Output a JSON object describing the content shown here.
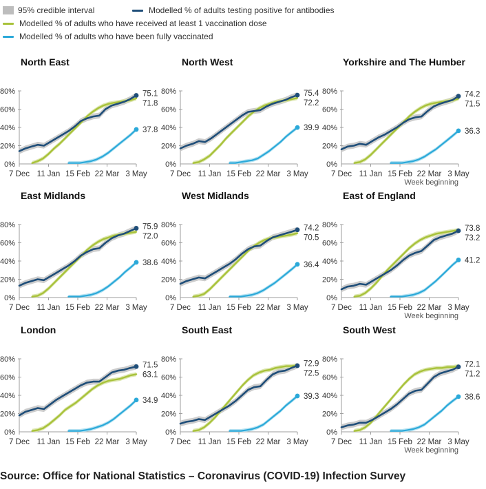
{
  "legend": {
    "ci_label": "95% credible interval",
    "antibody_label": "Modelled % of adults testing positive for antibodies",
    "dose1_label": "Modelled % of adults who have received at least 1 vaccination dose",
    "full_label": "Modelled % of adults who have been fully vaccinated"
  },
  "colors": {
    "antibody": "#1f4e79",
    "dose1": "#a8c23a",
    "full": "#2ba9d9",
    "ci": "#c4c4c4",
    "dose1_ci": "#d6e2a0",
    "full_ci": "#a9ddef",
    "axis": "#9e9e9e",
    "text": "#333333"
  },
  "source": "Source: Office for National Statistics – Coronavirus (COVID-19) Infection Survey",
  "chart_data": [
    {
      "type": "line",
      "title": "North East",
      "x_ticks": [
        "7 Dec",
        "11 Jan",
        "15 Feb",
        "22 Mar",
        "3 May"
      ],
      "y_ticks": [
        "0%",
        "20%",
        "40%",
        "60%",
        "80%"
      ],
      "ylim": [
        0,
        80
      ],
      "x_label": "",
      "end_labels": {
        "antibody": "75.1",
        "dose1": "71.8",
        "full": "37.8"
      },
      "series": {
        "antibody": [
          14,
          17,
          19,
          21,
          20,
          24,
          28,
          32,
          36,
          41,
          47,
          50,
          52,
          53,
          60,
          64,
          66,
          68,
          71,
          75.1
        ],
        "dose1": [
          1,
          3,
          6,
          11,
          17,
          22,
          28,
          34,
          40,
          46,
          52,
          57,
          61,
          64,
          66,
          67,
          68,
          69,
          70,
          71.8
        ],
        "full": [
          1,
          1,
          1,
          2,
          3,
          5,
          8,
          12,
          17,
          22,
          27,
          32,
          37.8
        ]
      }
    },
    {
      "type": "line",
      "title": "North West",
      "x_ticks": [
        "7 Dec",
        "11 Jan",
        "15 Feb",
        "22 Mar",
        "3 May"
      ],
      "y_ticks": [
        "0%",
        "20%",
        "40%",
        "60%",
        "80%"
      ],
      "ylim": [
        0,
        80
      ],
      "x_label": "",
      "end_labels": {
        "antibody": "75.4",
        "dose1": "72.2",
        "full": "39.9"
      },
      "series": {
        "antibody": [
          17,
          20,
          22,
          25,
          24,
          28,
          33,
          38,
          43,
          48,
          53,
          57,
          58,
          59,
          63,
          66,
          68,
          70,
          73,
          75.4
        ],
        "dose1": [
          1,
          2,
          5,
          9,
          15,
          21,
          28,
          34,
          40,
          46,
          52,
          57,
          61,
          64,
          66,
          68,
          69,
          70,
          71,
          72.2
        ],
        "full": [
          1,
          1,
          2,
          3,
          4,
          6,
          10,
          14,
          19,
          24,
          30,
          35,
          39.9
        ]
      }
    },
    {
      "type": "line",
      "title": "Yorkshire and The Humber",
      "x_ticks": [
        "7 Dec",
        "11 Jan",
        "15 Feb",
        "22 Mar",
        "3 May"
      ],
      "y_ticks": [
        "0%",
        "20%",
        "40%",
        "60%",
        "80%"
      ],
      "ylim": [
        0,
        80
      ],
      "x_label": "Week beginning",
      "end_labels": {
        "antibody": "74.2",
        "dose1": "71.5",
        "full": "36.3"
      },
      "series": {
        "antibody": [
          16,
          19,
          20,
          22,
          21,
          25,
          29,
          32,
          36,
          40,
          45,
          49,
          51,
          52,
          58,
          63,
          66,
          68,
          70,
          74.2
        ],
        "dose1": [
          1,
          2,
          5,
          10,
          16,
          22,
          28,
          34,
          40,
          46,
          52,
          57,
          61,
          64,
          66,
          67,
          68,
          69,
          70,
          71.5
        ],
        "full": [
          1,
          1,
          1,
          2,
          3,
          5,
          8,
          12,
          16,
          21,
          26,
          31,
          36.3
        ]
      }
    },
    {
      "type": "line",
      "title": "East Midlands",
      "x_ticks": [
        "7 Dec",
        "11 Jan",
        "15 Feb",
        "22 Mar",
        "3 May"
      ],
      "y_ticks": [
        "0%",
        "20%",
        "40%",
        "60%",
        "80%"
      ],
      "ylim": [
        0,
        80
      ],
      "x_label": "",
      "end_labels": {
        "antibody": "75.9",
        "dose1": "72.0",
        "full": "38.6"
      },
      "series": {
        "antibody": [
          13,
          16,
          18,
          20,
          19,
          23,
          27,
          31,
          35,
          40,
          46,
          50,
          53,
          54,
          60,
          65,
          68,
          70,
          73,
          75.9
        ],
        "dose1": [
          1,
          2,
          5,
          10,
          16,
          22,
          28,
          34,
          40,
          46,
          52,
          57,
          61,
          64,
          66,
          68,
          69,
          70,
          71,
          72.0
        ],
        "full": [
          1,
          1,
          1,
          2,
          3,
          5,
          8,
          12,
          17,
          22,
          28,
          33,
          38.6
        ]
      }
    },
    {
      "type": "line",
      "title": "West Midlands",
      "x_ticks": [
        "7 Dec",
        "11 Jan",
        "15 Feb",
        "22 Mar",
        "3 May"
      ],
      "y_ticks": [
        "0%",
        "20%",
        "40%",
        "60%",
        "80%"
      ],
      "ylim": [
        0,
        80
      ],
      "x_label": "",
      "end_labels": {
        "antibody": "74.2",
        "dose1": "70.5",
        "full": "36.4"
      },
      "series": {
        "antibody": [
          15,
          18,
          20,
          22,
          21,
          25,
          29,
          33,
          37,
          42,
          48,
          53,
          56,
          57,
          62,
          66,
          68,
          70,
          72,
          74.2
        ],
        "dose1": [
          1,
          2,
          4,
          9,
          15,
          21,
          27,
          33,
          39,
          45,
          51,
          56,
          60,
          63,
          65,
          66,
          67,
          68,
          69,
          70.5
        ],
        "full": [
          1,
          1,
          1,
          2,
          3,
          5,
          8,
          12,
          16,
          21,
          26,
          31,
          36.4
        ]
      }
    },
    {
      "type": "line",
      "title": "East of England",
      "x_ticks": [
        "7 Dec",
        "11 Jan",
        "15 Feb",
        "22 Mar",
        "3 May"
      ],
      "y_ticks": [
        "0%",
        "20%",
        "40%",
        "60%",
        "80%"
      ],
      "ylim": [
        0,
        80
      ],
      "x_label": "Week beginning",
      "end_labels": {
        "antibody": "73.2",
        "dose1": "73.8",
        "full": "41.2"
      },
      "series": {
        "antibody": [
          9,
          12,
          13,
          15,
          14,
          18,
          22,
          26,
          30,
          35,
          41,
          46,
          49,
          51,
          57,
          63,
          66,
          68,
          70,
          73.2
        ],
        "dose1": [
          1,
          2,
          5,
          10,
          16,
          23,
          30,
          36,
          42,
          48,
          54,
          59,
          63,
          66,
          68,
          70,
          71,
          72,
          73,
          73.8
        ],
        "full": [
          1,
          1,
          1,
          2,
          3,
          5,
          8,
          13,
          18,
          24,
          30,
          36,
          41.2
        ]
      }
    },
    {
      "type": "line",
      "title": "London",
      "x_ticks": [
        "7 Dec",
        "11 Jan",
        "15 Feb",
        "22 Mar",
        "3 May"
      ],
      "y_ticks": [
        "0%",
        "20%",
        "40%",
        "60%",
        "80%"
      ],
      "ylim": [
        0,
        80
      ],
      "x_label": "",
      "end_labels": {
        "antibody": "71.5",
        "dose1": "63.1",
        "full": "34.9"
      },
      "series": {
        "antibody": [
          18,
          22,
          24,
          26,
          25,
          30,
          35,
          39,
          43,
          47,
          51,
          54,
          55,
          55,
          60,
          65,
          67,
          68,
          70,
          71.5
        ],
        "dose1": [
          1,
          2,
          4,
          8,
          13,
          18,
          24,
          28,
          32,
          37,
          42,
          47,
          51,
          54,
          56,
          57,
          58,
          60,
          62,
          63.1
        ],
        "full": [
          1,
          1,
          1,
          2,
          3,
          5,
          7,
          10,
          14,
          19,
          24,
          29,
          34.9
        ]
      }
    },
    {
      "type": "line",
      "title": "South East",
      "x_ticks": [
        "7 Dec",
        "11 Jan",
        "15 Feb",
        "22 Mar",
        "3 May"
      ],
      "y_ticks": [
        "0%",
        "20%",
        "40%",
        "60%",
        "80%"
      ],
      "ylim": [
        0,
        80
      ],
      "x_label": "",
      "end_labels": {
        "antibody": "72.5",
        "dose1": "72.9",
        "full": "39.3"
      },
      "series": {
        "antibody": [
          9,
          11,
          12,
          14,
          13,
          17,
          21,
          25,
          29,
          34,
          40,
          46,
          49,
          50,
          57,
          63,
          66,
          67,
          70,
          72.5
        ],
        "dose1": [
          1,
          2,
          5,
          10,
          16,
          23,
          30,
          37,
          44,
          51,
          57,
          62,
          65,
          67,
          68,
          70,
          71,
          72,
          72,
          72.9
        ],
        "full": [
          1,
          1,
          1,
          2,
          3,
          5,
          8,
          13,
          18,
          23,
          29,
          34,
          39.3
        ]
      }
    },
    {
      "type": "line",
      "title": "South West",
      "x_ticks": [
        "7 Dec",
        "11 Jan",
        "15 Feb",
        "22 Mar",
        "3 May"
      ],
      "y_ticks": [
        "0%",
        "20%",
        "40%",
        "60%",
        "80%"
      ],
      "ylim": [
        0,
        80
      ],
      "x_label": "Week beginning",
      "end_labels": {
        "antibody": "71.2",
        "dose1": "72.1",
        "full": "38.6"
      },
      "series": {
        "antibody": [
          5,
          7,
          8,
          10,
          10,
          13,
          17,
          21,
          25,
          30,
          36,
          42,
          45,
          46,
          53,
          60,
          64,
          66,
          68,
          71.2
        ],
        "dose1": [
          1,
          2,
          5,
          10,
          17,
          24,
          31,
          38,
          45,
          52,
          58,
          63,
          66,
          68,
          69,
          70,
          70,
          71,
          71,
          72.1
        ],
        "full": [
          1,
          1,
          1,
          2,
          3,
          5,
          8,
          13,
          18,
          23,
          29,
          34,
          38.6
        ]
      }
    }
  ]
}
